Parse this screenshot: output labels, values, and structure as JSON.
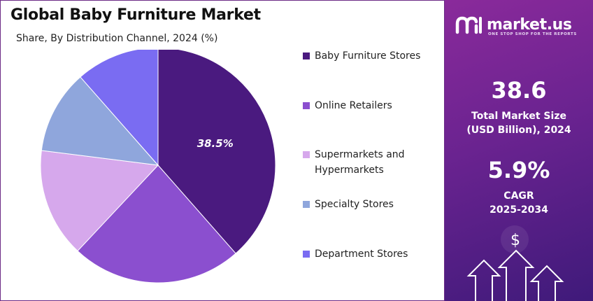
{
  "header": {
    "title": "Global Baby Furniture Market",
    "subtitle": "Share, By Distribution Channel, 2024 (%)"
  },
  "chart_data": {
    "type": "pie",
    "title": "Global Baby Furniture Market",
    "subtitle": "Share, By Distribution Channel, 2024 (%)",
    "legend_position": "right",
    "slices": [
      {
        "label": "Baby Furniture Stores",
        "value": 38.5,
        "color": "#4a1a7f",
        "data_label": "38.5%"
      },
      {
        "label": "Online Retailers",
        "value": 23.5,
        "color": "#8b4fcf"
      },
      {
        "label": "Supermarkets and Hypermarkets",
        "value": 15.0,
        "color": "#d6a8ec"
      },
      {
        "label": "Specialty Stores",
        "value": 11.5,
        "color": "#8fa6dc"
      },
      {
        "label": "Department Stores",
        "value": 11.5,
        "color": "#7a6cf2"
      }
    ]
  },
  "legend": {
    "items": [
      {
        "label": "Baby Furniture Stores",
        "color": "#4a1a7f"
      },
      {
        "label": "Online Retailers",
        "color": "#8b4fcf"
      },
      {
        "label": "Supermarkets and Hypermarkets",
        "color": "#d6a8ec"
      },
      {
        "label": "Specialty Stores",
        "color": "#8fa6dc"
      },
      {
        "label": "Department Stores",
        "color": "#7a6cf2"
      }
    ]
  },
  "sidebar": {
    "brand": "market.us",
    "tagline": "ONE STOP SHOP FOR THE REPORTS",
    "market_size_value": "38.6",
    "market_size_label_1": "Total Market Size",
    "market_size_label_2": "(USD Billion), 2024",
    "cagr_value": "5.9%",
    "cagr_label_1": "CAGR",
    "cagr_label_2": "2025-2034",
    "dollar_symbol": "$",
    "icons": [
      "market-us-logo-icon",
      "dollar-icon",
      "up-arrow-icon"
    ]
  }
}
